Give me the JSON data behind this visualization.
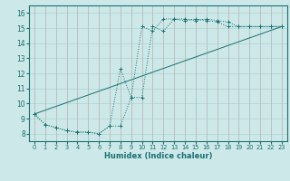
{
  "xlabel": "Humidex (Indice chaleur)",
  "bg_color": "#cce8e8",
  "grid_color": "#b0d4d4",
  "line_color": "#1a7070",
  "xlim": [
    -0.5,
    23.5
  ],
  "ylim": [
    7.5,
    16.5
  ],
  "xticks": [
    0,
    1,
    2,
    3,
    4,
    5,
    6,
    7,
    8,
    9,
    10,
    11,
    12,
    13,
    14,
    15,
    16,
    17,
    18,
    19,
    20,
    21,
    22,
    23
  ],
  "yticks": [
    8,
    9,
    10,
    11,
    12,
    13,
    14,
    15,
    16
  ],
  "line1_x": [
    0,
    1,
    2,
    3,
    4,
    5,
    6,
    7,
    8,
    9,
    10,
    11,
    12,
    13,
    14,
    15,
    16,
    17,
    18,
    19,
    20,
    21,
    22,
    23
  ],
  "line1_y": [
    9.3,
    8.6,
    8.4,
    8.2,
    8.1,
    8.1,
    8.0,
    8.5,
    8.5,
    10.4,
    15.1,
    14.8,
    15.6,
    15.6,
    15.5,
    15.6,
    15.5,
    15.4,
    15.1,
    15.1,
    15.1,
    15.1,
    15.1,
    15.1
  ],
  "line2_x": [
    0,
    1,
    2,
    3,
    4,
    5,
    6,
    7,
    8,
    9,
    10,
    11,
    12,
    13,
    14,
    15,
    16,
    17,
    18,
    19,
    20,
    21,
    22,
    23
  ],
  "line2_y": [
    9.3,
    8.6,
    8.4,
    8.2,
    8.1,
    8.1,
    8.0,
    8.5,
    12.3,
    10.4,
    10.4,
    15.1,
    14.8,
    15.6,
    15.6,
    15.5,
    15.6,
    15.5,
    15.4,
    15.1,
    15.1,
    15.1,
    15.1,
    15.1
  ],
  "line3_x": [
    0,
    23
  ],
  "line3_y": [
    9.3,
    15.1
  ]
}
